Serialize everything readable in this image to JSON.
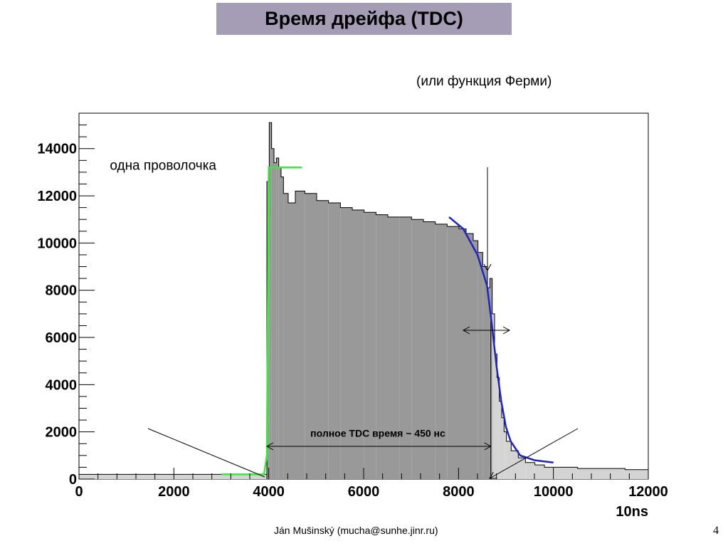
{
  "slide": {
    "title": "Время дрейфа (TDC)",
    "note": "(или функция Ферми)",
    "footer": "Ján Mušinský (mucha@sunhe.jinr.ru)",
    "page_number": "4"
  },
  "colors": {
    "title_bg": "#a59db5",
    "histogram_dark": "#999999",
    "histogram_light": "#d4d4d4",
    "leading_edge_fit": "#33ee33",
    "trailing_edge_fit": "#1f23c8"
  },
  "chart_data": {
    "type": "bar",
    "title": "",
    "xlabel": "10ns",
    "ylabel": "",
    "xlim": [
      0,
      12000
    ],
    "ylim": [
      0,
      15500
    ],
    "grid": false,
    "x_ticks": [
      0,
      2000,
      4000,
      6000,
      8000,
      10000,
      12000
    ],
    "y_ticks": [
      0,
      2000,
      4000,
      6000,
      8000,
      10000,
      12000,
      14000
    ],
    "x_tick_labels": [
      "0",
      "2000",
      "4000",
      "6000",
      "8000",
      "10000",
      "12000"
    ],
    "y_tick_labels": [
      "0",
      "2000",
      "4000",
      "6000",
      "8000",
      "10000",
      "12000",
      "14000"
    ],
    "series": [
      {
        "x": [
          3960,
          4010,
          4060,
          4110,
          4160,
          4210,
          4260,
          4310,
          4410,
          4560,
          4760,
          5010,
          5260,
          5510,
          5760,
          6010,
          6260,
          6510,
          6760,
          7010,
          7260,
          7510,
          7760,
          8010,
          8160,
          8310,
          8410,
          8510,
          8610,
          8660,
          8710,
          8760,
          8810,
          8860,
          8910,
          8960,
          9010,
          9110,
          9260,
          9410,
          9610,
          9810,
          10010,
          10510,
          11010,
          11510,
          12000
        ],
        "values": [
          12600,
          15100,
          14000,
          13400,
          13600,
          13200,
          12800,
          12100,
          11700,
          12200,
          12100,
          11800,
          11700,
          11500,
          11400,
          11300,
          11200,
          11100,
          11100,
          11000,
          10900,
          10800,
          10700,
          10600,
          10400,
          10100,
          9600,
          9000,
          8100,
          8500,
          7000,
          5300,
          4300,
          3300,
          2600,
          2000,
          1600,
          1200,
          900,
          700,
          600,
          500,
          500,
          450,
          450,
          400,
          350
        ]
      }
    ],
    "baseline": {
      "x": [
        0,
        3960
      ],
      "value": 200
    },
    "shaded_regions": [
      {
        "x": [
          3960,
          8680
        ],
        "style": "dark"
      },
      {
        "x": [
          8680,
          12000
        ],
        "style": "light"
      }
    ],
    "fits": [
      {
        "name": "leading-edge",
        "x": [
          3000,
          3900,
          3960,
          4000,
          4700
        ],
        "y": [
          200,
          200,
          1000,
          13200,
          13200
        ]
      },
      {
        "name": "trailing-edge",
        "x": [
          7800,
          8100,
          8400,
          8600,
          8700,
          8800,
          8900,
          9000,
          9100,
          9300,
          9600,
          10000
        ],
        "y": [
          11100,
          10600,
          9500,
          8200,
          6600,
          4800,
          3300,
          2200,
          1600,
          1000,
          800,
          700
        ]
      }
    ],
    "annotations": [
      {
        "text": "одна проволочка",
        "x": 650,
        "y": 13100
      },
      {
        "text": "полное TDC время ~ 450 нс",
        "x": 6300,
        "y": 1800
      }
    ]
  }
}
